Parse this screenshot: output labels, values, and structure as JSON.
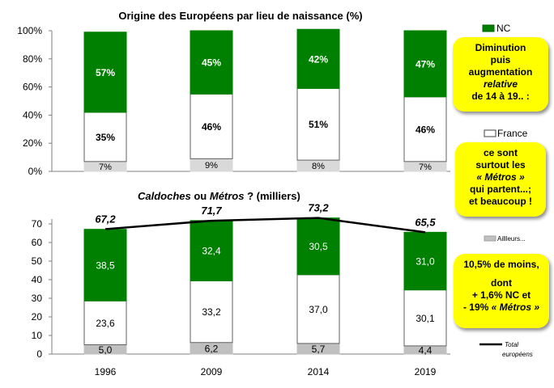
{
  "chart_data": [
    {
      "type": "bar",
      "title": "Origine des Européens par lieu de naissance (%)",
      "categories": [
        "1996",
        "2009",
        "2014",
        "2019"
      ],
      "ylim": [
        0,
        100
      ],
      "yticks": [
        "0%",
        "20%",
        "40%",
        "60%",
        "80%",
        "100%"
      ],
      "stacked": true,
      "series": [
        {
          "name": "",
          "values": [
            7,
            9,
            8,
            7
          ],
          "labels": [
            "7%",
            "9%",
            "8%",
            "7%"
          ],
          "color": "#d9d9d9"
        },
        {
          "name": "France",
          "values": [
            35,
            46,
            51,
            46
          ],
          "labels": [
            "35%",
            "46%",
            "51%",
            "46%"
          ],
          "color": "#ffffff"
        },
        {
          "name": "NC",
          "values": [
            57,
            45,
            42,
            47
          ],
          "labels": [
            "57%",
            "45%",
            "42%",
            "47%"
          ],
          "color": "#008000"
        }
      ]
    },
    {
      "type": "bar",
      "title_parts": {
        "a": "Caldoches",
        "b": " ou ",
        "c": "Métros",
        "d": " ? (milliers)"
      },
      "categories": [
        "1996",
        "2009",
        "2014",
        "2019"
      ],
      "ylim": [
        0,
        70
      ],
      "yticks": [
        "0",
        "10",
        "20",
        "30",
        "40",
        "50",
        "60",
        "70"
      ],
      "stacked": true,
      "series": [
        {
          "name": "Aillleurs...",
          "values": [
            5.0,
            6.2,
            5.7,
            4.4
          ],
          "labels": [
            "5,0",
            "6,2",
            "5,7",
            "4,4"
          ],
          "color": "#c0c0c0"
        },
        {
          "name": "France",
          "values": [
            23.6,
            33.2,
            37.0,
            30.1
          ],
          "labels": [
            "23,6",
            "33,2",
            "37,0",
            "30,1"
          ],
          "color": "#ffffff"
        },
        {
          "name": "NC",
          "values": [
            38.5,
            32.4,
            30.5,
            31.0
          ],
          "labels": [
            "38,5",
            "32,4",
            "30,5",
            "31,0"
          ],
          "color": "#008000"
        }
      ],
      "line": {
        "name": "Total européens",
        "name_lines": [
          "Total",
          "européens"
        ],
        "values": [
          67.2,
          71.7,
          73.2,
          65.5
        ],
        "labels": [
          "67,2",
          "71,7",
          "73,2",
          "65,5"
        ]
      }
    }
  ],
  "legend": {
    "nc": "NC",
    "france": "France",
    "ailleurs": "Aillleurs..."
  },
  "notes": {
    "note1": [
      "Diminution",
      "puis",
      "augmentation",
      "relative",
      "de 14 à 19.. :"
    ],
    "note2": [
      "ce sont",
      "surtout les",
      "« Métros »",
      "qui partent...;",
      "et beaucoup !"
    ],
    "note3": [
      "10,5% de moins,",
      "",
      "dont",
      "+ 1,6% NC et",
      "- 19% ",
      "« Métros »"
    ]
  }
}
